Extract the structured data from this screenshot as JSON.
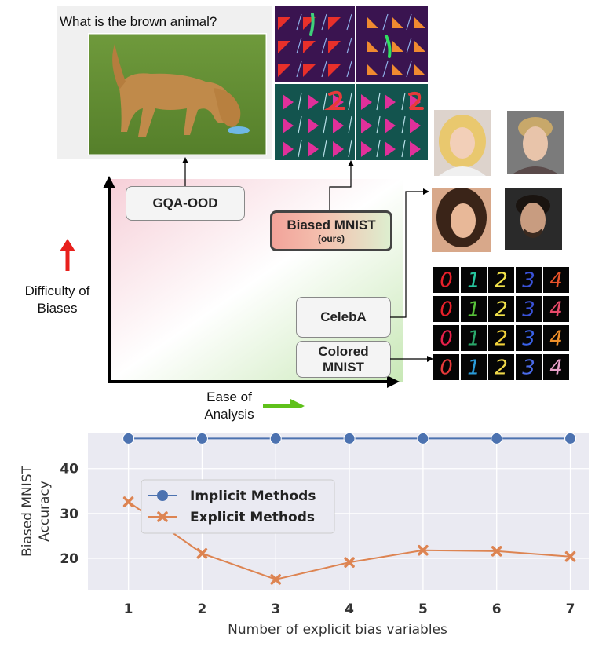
{
  "diagram": {
    "question": "What is the brown animal?",
    "y_axis_label_line1": "Difficulty of",
    "y_axis_label_line2": "Biases",
    "x_axis_label_line1": "Ease of",
    "x_axis_label_line2": "Analysis",
    "boxes": {
      "gqa_ood": "GQA-OOD",
      "biased_mnist": "Biased MNIST",
      "biased_mnist_sub": "(ours)",
      "celeba": "CelebA",
      "colored_mnist_line1": "Colored",
      "colored_mnist_line2": "MNIST"
    },
    "digit_rows": [
      {
        "digits": [
          "0",
          "1",
          "2",
          "3",
          "4"
        ],
        "colors": [
          "#e8202a",
          "#27c8a0",
          "#f2e24a",
          "#3a52d8",
          "#e8532a"
        ]
      },
      {
        "digits": [
          "0",
          "1",
          "2",
          "3",
          "4"
        ],
        "colors": [
          "#e8202a",
          "#58c23a",
          "#f2e24a",
          "#3a52d8",
          "#e84a6a"
        ]
      },
      {
        "digits": [
          "0",
          "1",
          "2",
          "3",
          "4"
        ],
        "colors": [
          "#e8204a",
          "#2aa86a",
          "#f2d23a",
          "#3a62e8",
          "#f0902a"
        ]
      },
      {
        "digits": [
          "0",
          "1",
          "2",
          "3",
          "4"
        ],
        "colors": [
          "#e83a3a",
          "#2a9ad8",
          "#f0d84a",
          "#4a6ae8",
          "#e8a0c8"
        ]
      }
    ]
  },
  "chart_data": {
    "type": "line",
    "x": [
      1,
      2,
      3,
      4,
      5,
      6,
      7
    ],
    "xlabel": "Number of explicit bias variables",
    "ylabel_line1": "Biased MNIST",
    "ylabel_line2": "Accuracy",
    "ylim": [
      13,
      48
    ],
    "yticks": [
      20,
      30,
      40
    ],
    "grid": true,
    "legend_position": "upper-left",
    "series": [
      {
        "name": "Implicit Methods",
        "values": [
          46.7,
          46.7,
          46.7,
          46.7,
          46.7,
          46.7,
          46.7
        ],
        "color": "#4c72b0",
        "marker": "circle"
      },
      {
        "name": "Explicit Methods",
        "values": [
          32.6,
          21.1,
          15.3,
          19.1,
          21.8,
          21.6,
          20.4
        ],
        "color": "#dd8452",
        "marker": "x"
      }
    ]
  }
}
